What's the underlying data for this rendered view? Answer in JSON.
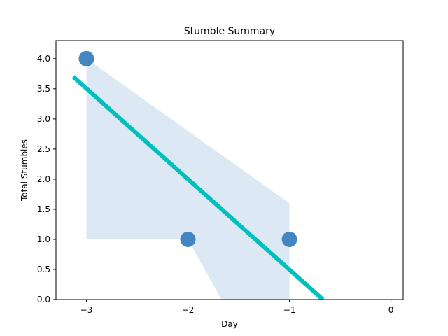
{
  "chart_data": {
    "type": "scatter",
    "title": "Stumble Summary",
    "xlabel": "Day",
    "ylabel": "Total Stumbles",
    "xlim": [
      -3.3,
      0.12
    ],
    "ylim": [
      0,
      4.3
    ],
    "xticks": [
      -3,
      -2,
      -1,
      0
    ],
    "xtick_labels": [
      "−3",
      "−2",
      "−1",
      "0"
    ],
    "yticks": [
      0,
      0.5,
      1,
      1.5,
      2,
      2.5,
      3,
      3.5,
      4
    ],
    "ytick_labels": [
      "0.0",
      "0.5",
      "1.0",
      "1.5",
      "2.0",
      "2.5",
      "3.0",
      "3.5",
      "4.0"
    ],
    "grid": false,
    "legend": "none",
    "points": [
      {
        "x": -3,
        "y": 4
      },
      {
        "x": -2,
        "y": 1
      },
      {
        "x": -1,
        "y": 1
      }
    ],
    "regression": {
      "x": [
        -3.13,
        -0.67
      ],
      "y": [
        3.7,
        0.0
      ]
    },
    "confidence_band": [
      {
        "x": -3,
        "y": 4
      },
      {
        "x": -1,
        "y": 1.6
      },
      {
        "x": -1,
        "y": 0
      },
      {
        "x": -1.67,
        "y": 0
      },
      {
        "x": -2,
        "y": 1
      },
      {
        "x": -3,
        "y": 1
      }
    ],
    "colors": {
      "points": "#3a80be",
      "regression": "#00bfbf",
      "band": "#dce8f3"
    }
  }
}
